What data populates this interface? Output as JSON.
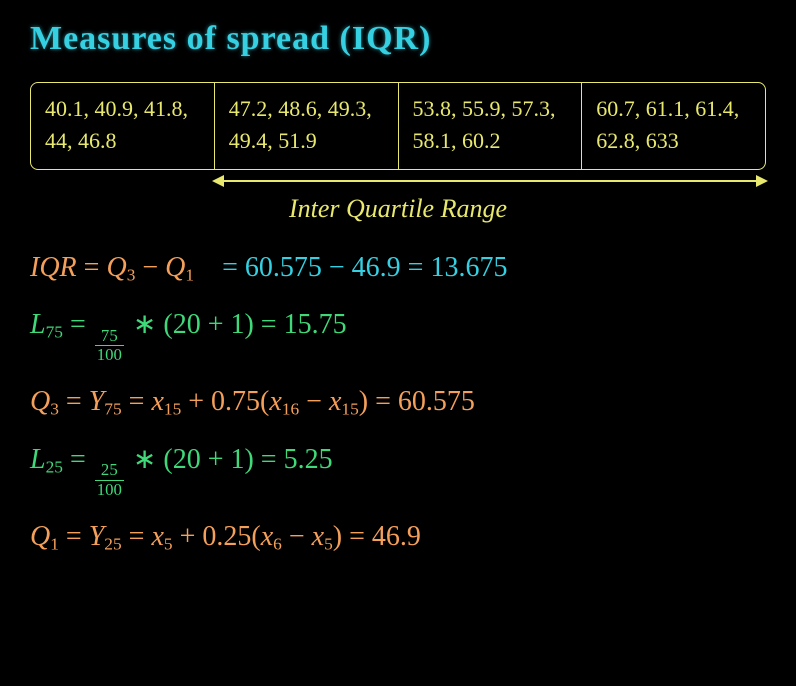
{
  "title": "Measures of spread (IQR)",
  "colors": {
    "title": "#35d0e2",
    "border": "#e8e86f",
    "cell_text": "#e8e86f",
    "iqr_label": "#e8e86f",
    "orange": "#f5a05a",
    "cyan": "#35d0e2",
    "green": "#3fd97a",
    "background": "#000000"
  },
  "table": {
    "cells": [
      "40.1, 40.9, 41.8, 44, 46.8",
      "47.2, 48.6, 49.3, 49.4, 51.9",
      "53.8, 55.9, 57.3, 58.1, 60.2",
      "60.7, 61.1, 61.4, 62.8, 633"
    ]
  },
  "iqr_label": "Inter Quartile Range",
  "eq1": {
    "lhs_iqr": "IQR",
    "eq1": " = ",
    "q3": "Q",
    "q3sub": "3",
    "minus": " − ",
    "q1": "Q",
    "q1sub": "1",
    "rhs": " = 60.575 − 46.9 = 13.675"
  },
  "eq2": {
    "L": "L",
    "Lsub": "75",
    "eq": " = ",
    "num": "75",
    "den": "100",
    "rest": " ∗ (20 + 1) = 15.75"
  },
  "eq3": {
    "Q": "Q",
    "Qsub": "3",
    "eq1": " = ",
    "Y": "Y",
    "Ysub": "75",
    "eq2": " = ",
    "x1": "x",
    "x1sub": "15",
    "plus": " + 0.75(",
    "x2": "x",
    "x2sub": "16",
    "minus": " − ",
    "x3": "x",
    "x3sub": "15",
    "close": ") = 60.575"
  },
  "eq4": {
    "L": "L",
    "Lsub": "25",
    "eq": " = ",
    "num": "25",
    "den": "100",
    "rest": " ∗ (20 + 1) = 5.25"
  },
  "eq5": {
    "Q": "Q",
    "Qsub": "1",
    "eq1": " = ",
    "Y": "Y",
    "Ysub": "25",
    "eq2": " = ",
    "x1": "x",
    "x1sub": "5",
    "plus": " + 0.25(",
    "x2": "x",
    "x2sub": "6",
    "minus": " − ",
    "x3": "x",
    "x3sub": "5",
    "close": ") = 46.9"
  }
}
